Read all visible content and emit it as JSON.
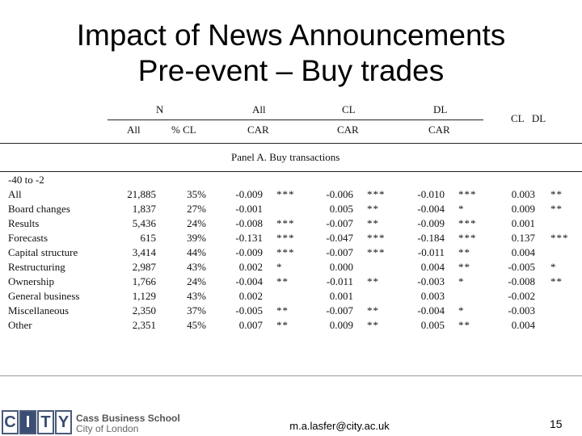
{
  "slide": {
    "title_line1": "Impact of News Announcements",
    "title_line2": "Pre-event – Buy trades"
  },
  "table": {
    "header_top": {
      "n": "N",
      "all": "All",
      "cl": "CL",
      "dl": "DL",
      "cl_dl": "CL   DL"
    },
    "header_sub": {
      "all": "All",
      "pct_cl": "% CL",
      "car_all": "CAR",
      "car_cl": "CAR",
      "car_dl": "CAR"
    },
    "panel_title": "Panel A. Buy transactions",
    "window": "-40 to -2",
    "rows": [
      {
        "label": "All",
        "n": "21,885",
        "pct": "35%",
        "car_all": "-0.009",
        "sig_all": "***",
        "car_cl": "-0.006",
        "sig_cl": "***",
        "car_dl": "-0.010",
        "sig_dl": "***",
        "diff": "0.003",
        "sig_diff": "**"
      },
      {
        "label": "Board changes",
        "n": "1,837",
        "pct": "27%",
        "car_all": "-0.001",
        "sig_all": "",
        "car_cl": "0.005",
        "sig_cl": "**",
        "car_dl": "-0.004",
        "sig_dl": "*",
        "diff": "0.009",
        "sig_diff": "**"
      },
      {
        "label": "Results",
        "n": "5,436",
        "pct": "24%",
        "car_all": "-0.008",
        "sig_all": "***",
        "car_cl": "-0.007",
        "sig_cl": "**",
        "car_dl": "-0.009",
        "sig_dl": "***",
        "diff": "0.001",
        "sig_diff": ""
      },
      {
        "label": "Forecasts",
        "n": "615",
        "pct": "39%",
        "car_all": "-0.131",
        "sig_all": "***",
        "car_cl": "-0.047",
        "sig_cl": "***",
        "car_dl": "-0.184",
        "sig_dl": "***",
        "diff": "0.137",
        "sig_diff": "***"
      },
      {
        "label": "Capital structure",
        "n": "3,414",
        "pct": "44%",
        "car_all": "-0.009",
        "sig_all": "***",
        "car_cl": "-0.007",
        "sig_cl": "***",
        "car_dl": "-0.011",
        "sig_dl": "**",
        "diff": "0.004",
        "sig_diff": ""
      },
      {
        "label": "Restructuring",
        "n": "2,987",
        "pct": "43%",
        "car_all": "0.002",
        "sig_all": "*",
        "car_cl": "0.000",
        "sig_cl": "",
        "car_dl": "0.004",
        "sig_dl": "**",
        "diff": "-0.005",
        "sig_diff": "*"
      },
      {
        "label": "Ownership",
        "n": "1,766",
        "pct": "24%",
        "car_all": "-0.004",
        "sig_all": "**",
        "car_cl": "-0.011",
        "sig_cl": "**",
        "car_dl": "-0.003",
        "sig_dl": "*",
        "diff": "-0.008",
        "sig_diff": "**"
      },
      {
        "label": "General business",
        "n": "1,129",
        "pct": "43%",
        "car_all": "0.002",
        "sig_all": "",
        "car_cl": "0.001",
        "sig_cl": "",
        "car_dl": "0.003",
        "sig_dl": "",
        "diff": "-0.002",
        "sig_diff": ""
      },
      {
        "label": "Miscellaneous",
        "n": "2,350",
        "pct": "37%",
        "car_all": "-0.005",
        "sig_all": "**",
        "car_cl": "-0.007",
        "sig_cl": "**",
        "car_dl": "-0.004",
        "sig_dl": "*",
        "diff": "-0.003",
        "sig_diff": ""
      },
      {
        "label": "Other",
        "n": "2,351",
        "pct": "45%",
        "car_all": "0.007",
        "sig_all": "**",
        "car_cl": "0.009",
        "sig_cl": "**",
        "car_dl": "0.005",
        "sig_dl": "**",
        "diff": "0.004",
        "sig_diff": ""
      }
    ]
  },
  "footer": {
    "logo_letters": [
      "C",
      "I",
      "T",
      "Y"
    ],
    "school_line1": "Cass Business School",
    "school_line2": "City of London",
    "email": "m.a.lasfer@city.ac.uk",
    "page_number": "15"
  },
  "colors": {
    "logo_blue": "#3c4d73"
  }
}
